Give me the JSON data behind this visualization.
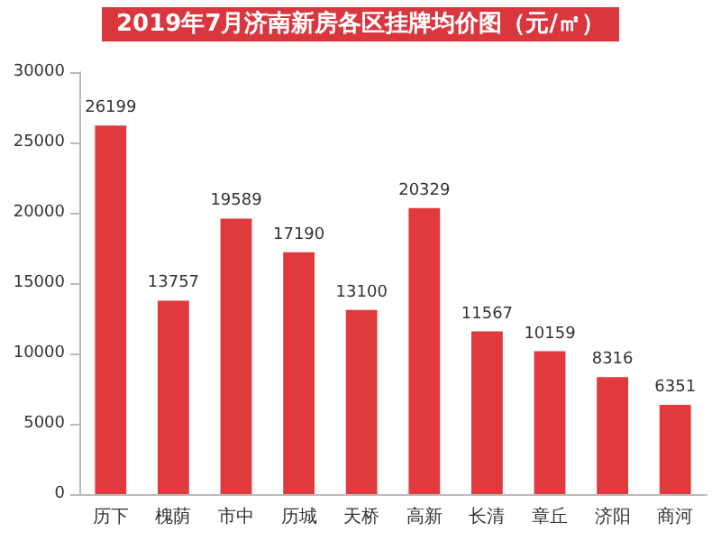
{
  "chart_data": {
    "type": "bar",
    "title": "2019年7月济南新房各区挂牌均价图（元/㎡）",
    "categories": [
      "历下",
      "槐荫",
      "市中",
      "历城",
      "天桥",
      "高新",
      "长清",
      "章丘",
      "济阳",
      "商河"
    ],
    "values": [
      26199,
      13757,
      19589,
      17190,
      13100,
      20329,
      11567,
      10159,
      8316,
      6351
    ],
    "color": "#e03a3e",
    "ylim": [
      0,
      30000
    ],
    "yticks": [
      0,
      5000,
      10000,
      15000,
      20000,
      25000,
      30000
    ],
    "grid": false,
    "data_labels": true
  }
}
